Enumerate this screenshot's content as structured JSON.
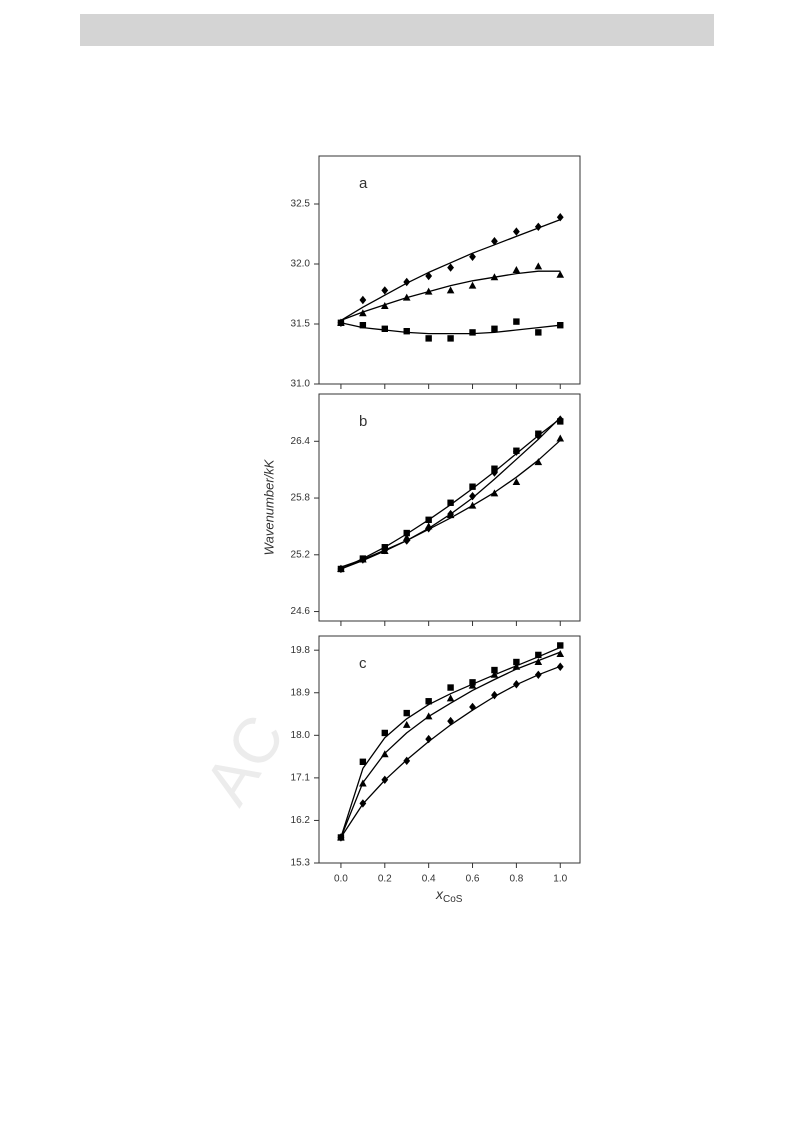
{
  "watermark": "AC",
  "chart_data": [
    {
      "type": "scatter",
      "label": "a",
      "x": [
        0,
        0.1,
        0.2,
        0.3,
        0.4,
        0.5,
        0.6,
        0.7,
        0.8,
        0.9,
        1
      ],
      "xlim": [
        -0.1,
        1.09
      ],
      "ylim": [
        31.0,
        32.9
      ],
      "yticks": [
        {
          "value": 31,
          "label": "31.0"
        },
        31.5,
        {
          "value": 32,
          "label": "32.0"
        },
        32.5
      ],
      "series": [
        {
          "marker": "diamond",
          "color": "#000",
          "values": [
            31.51,
            31.7,
            31.78,
            31.85,
            31.9,
            31.97,
            32.06,
            32.19,
            32.27,
            32.31,
            32.39
          ],
          "fit": [
            31.53,
            31.64,
            31.74,
            31.84,
            31.93,
            32.01,
            32.09,
            32.16,
            32.23,
            32.3,
            32.37
          ]
        },
        {
          "marker": "triangle",
          "color": "#000",
          "values": [
            31.51,
            31.59,
            31.65,
            31.72,
            31.77,
            31.78,
            31.82,
            31.89,
            31.95,
            31.98,
            31.91
          ],
          "fit": [
            31.53,
            31.6,
            31.66,
            31.72,
            31.77,
            31.82,
            31.86,
            31.89,
            31.92,
            31.94,
            31.94
          ]
        },
        {
          "marker": "square",
          "color": "#000",
          "values": [
            31.51,
            31.49,
            31.46,
            31.44,
            31.38,
            31.38,
            31.43,
            31.46,
            31.52,
            31.43,
            31.49
          ],
          "fit": [
            31.51,
            31.47,
            31.45,
            31.43,
            31.42,
            31.42,
            31.42,
            31.43,
            31.45,
            31.47,
            31.49
          ]
        }
      ]
    },
    {
      "type": "scatter",
      "label": "b",
      "y_label": "Wavenumber/kK",
      "x": [
        0,
        0.1,
        0.2,
        0.3,
        0.4,
        0.5,
        0.6,
        0.7,
        0.8,
        0.9,
        1
      ],
      "xlim": [
        -0.1,
        1.09
      ],
      "ylim": [
        24.5,
        26.9
      ],
      "yticks": [
        24.6,
        25.2,
        25.8,
        26.4
      ],
      "series": [
        {
          "marker": "diamond",
          "color": "#000",
          "values": [
            25.05,
            25.15,
            25.25,
            25.35,
            25.48,
            25.63,
            25.82,
            26.07,
            26.29,
            26.46,
            26.63
          ],
          "fit": [
            25.05,
            25.14,
            25.24,
            25.35,
            25.48,
            25.63,
            25.8,
            26.0,
            26.21,
            26.42,
            26.65
          ]
        },
        {
          "marker": "square",
          "color": "#000",
          "values": [
            25.05,
            25.16,
            25.28,
            25.43,
            25.57,
            25.75,
            25.92,
            26.11,
            26.3,
            26.48,
            26.61
          ],
          "fit": [
            25.05,
            25.16,
            25.28,
            25.42,
            25.57,
            25.73,
            25.9,
            26.08,
            26.27,
            26.46,
            26.64
          ]
        },
        {
          "marker": "triangle",
          "color": "#000",
          "values": [
            25.05,
            25.15,
            25.24,
            25.38,
            25.5,
            25.62,
            25.72,
            25.85,
            25.97,
            26.18,
            26.43
          ],
          "fit": [
            25.07,
            25.15,
            25.25,
            25.35,
            25.47,
            25.59,
            25.72,
            25.86,
            26.02,
            26.2,
            26.41
          ]
        }
      ]
    },
    {
      "type": "scatter",
      "label": "c",
      "x_label": "x",
      "x_label_sub": "CoS",
      "x": [
        0,
        0.1,
        0.2,
        0.3,
        0.4,
        0.5,
        0.6,
        0.7,
        0.8,
        0.9,
        1
      ],
      "xlim": [
        -0.1,
        1.09
      ],
      "ylim": [
        15.3,
        20.1
      ],
      "xticks": [
        {
          "value": 0,
          "label": "0.0"
        },
        0.2,
        0.4,
        0.6,
        0.8,
        {
          "value": 1,
          "label": "1.0"
        }
      ],
      "yticks": [
        15.3,
        16.2,
        17.1,
        {
          "value": 18,
          "label": "18.0"
        },
        18.9,
        19.8
      ],
      "series": [
        {
          "marker": "square",
          "color": "#000",
          "values": [
            15.84,
            17.44,
            18.05,
            18.47,
            18.72,
            19.01,
            19.12,
            19.38,
            19.55,
            19.7,
            19.9
          ],
          "fit": [
            15.84,
            17.3,
            17.95,
            18.35,
            18.65,
            18.88,
            19.08,
            19.28,
            19.47,
            19.66,
            19.86
          ]
        },
        {
          "marker": "triangle",
          "color": "#000",
          "values": [
            15.84,
            16.98,
            17.6,
            18.22,
            18.4,
            18.78,
            19.05,
            19.28,
            19.45,
            19.55,
            19.72
          ],
          "fit": [
            15.84,
            17.0,
            17.62,
            18.05,
            18.4,
            18.68,
            18.95,
            19.18,
            19.4,
            19.58,
            19.76
          ]
        },
        {
          "marker": "diamond",
          "color": "#000",
          "values": [
            15.84,
            16.56,
            17.06,
            17.46,
            17.92,
            18.3,
            18.6,
            18.85,
            19.08,
            19.28,
            19.45
          ],
          "fit": [
            15.84,
            16.55,
            17.05,
            17.48,
            17.87,
            18.22,
            18.53,
            18.82,
            19.07,
            19.28,
            19.46
          ]
        }
      ]
    }
  ]
}
